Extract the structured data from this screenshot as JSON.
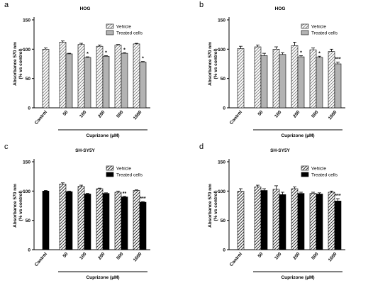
{
  "chart_data": [
    {
      "type": "bar",
      "panel_letter": "a",
      "title": "HOG",
      "ylabel_line1": "Absorbance 570 nm",
      "ylabel_line2": "(% vs control)",
      "xlabel": "Cuprizone (µM)",
      "ylim": [
        0,
        150
      ],
      "yticks": [
        "0",
        "50",
        "100",
        "150"
      ],
      "legend_position": "top-right",
      "control": {
        "label": "Control",
        "value": 100,
        "error": 2
      },
      "categories": [
        "50",
        "100",
        "200",
        "500",
        "1000"
      ],
      "series": [
        {
          "name": "Vehicle",
          "values": [
            112,
            108,
            105,
            107,
            109
          ],
          "errors": [
            2,
            2,
            2,
            1,
            1
          ],
          "significance": [
            "",
            "",
            "",
            "",
            ""
          ]
        },
        {
          "name": "Treated cells",
          "values": [
            92,
            86,
            88,
            93,
            78
          ],
          "errors": [
            1,
            1,
            1,
            1,
            1
          ],
          "significance": [
            "",
            "*",
            "*",
            "*",
            "*"
          ]
        }
      ],
      "style": {
        "vehicle_pattern": "hatch",
        "treated_fill": "#b3b3b3",
        "control_pattern": "hatch"
      }
    },
    {
      "type": "bar",
      "panel_letter": "b",
      "title": "HOG",
      "ylabel_line1": "Absorbance 570 nm",
      "ylabel_line2": "(% vs control)",
      "xlabel": "Cuprizone (µM)",
      "ylim": [
        0,
        150
      ],
      "yticks": [
        "0",
        "50",
        "100",
        "150"
      ],
      "legend_position": "top-right",
      "control": {
        "label": "Control",
        "value": 101,
        "error": 4
      },
      "categories": [
        "50",
        "100",
        "200",
        "500",
        "1000"
      ],
      "series": [
        {
          "name": "Vehicle",
          "values": [
            104,
            100,
            106,
            99,
            96
          ],
          "errors": [
            3,
            4,
            6,
            3,
            4
          ],
          "significance": [
            "",
            "",
            "",
            "",
            ""
          ]
        },
        {
          "name": "Treated cells",
          "values": [
            89,
            91,
            87,
            86,
            75
          ],
          "errors": [
            4,
            3,
            2,
            2,
            3
          ],
          "significance": [
            "",
            "",
            "*",
            "*",
            "***"
          ]
        }
      ],
      "style": {
        "vehicle_pattern": "hatch",
        "treated_fill": "#b3b3b3",
        "control_pattern": "hatch"
      }
    },
    {
      "type": "bar",
      "panel_letter": "c",
      "title": "SH-SY5Y",
      "ylabel_line1": "Absorbance 570 nm",
      "ylabel_line2": "(% vs control)",
      "xlabel": "Cuprizone (µM)",
      "ylim": [
        0,
        150
      ],
      "yticks": [
        "0",
        "50",
        "100",
        "150"
      ],
      "legend_position": "top-right",
      "control": {
        "label": "Control",
        "value": 100,
        "error": 1
      },
      "categories": [
        "50",
        "100",
        "200",
        "500",
        "1000"
      ],
      "series": [
        {
          "name": "Vehicle",
          "values": [
            112,
            108,
            104,
            98,
            101
          ],
          "errors": [
            2,
            2,
            1,
            2,
            1
          ],
          "significance": [
            "",
            "",
            "",
            "",
            ""
          ]
        },
        {
          "name": "Treated cells",
          "values": [
            99,
            95,
            96,
            90,
            81
          ],
          "errors": [
            1,
            1,
            1,
            1,
            1
          ],
          "significance": [
            "",
            "",
            "",
            "**",
            "***"
          ]
        }
      ],
      "style": {
        "vehicle_pattern": "hatch",
        "treated_fill": "#000000",
        "control_pattern": "solid"
      }
    },
    {
      "type": "bar",
      "panel_letter": "d",
      "title": "SH-SY5Y",
      "ylabel_line1": "Absorbance 570 nm",
      "ylabel_line2": "(% vs control)",
      "xlabel": "Cuprizone (µM)",
      "ylim": [
        0,
        150
      ],
      "yticks": [
        "0",
        "50",
        "100",
        "150"
      ],
      "legend_position": "top-right",
      "control": {
        "label": "Control",
        "value": 100,
        "error": 4
      },
      "categories": [
        "50",
        "100",
        "200",
        "500",
        "1000"
      ],
      "series": [
        {
          "name": "Vehicle",
          "values": [
            107,
            103,
            104,
            96,
            98
          ],
          "errors": [
            3,
            6,
            3,
            2,
            2
          ],
          "significance": [
            "",
            "",
            "",
            "",
            ""
          ]
        },
        {
          "name": "Treated cells",
          "values": [
            101,
            94,
            96,
            95,
            83
          ],
          "errors": [
            3,
            4,
            2,
            2,
            4
          ],
          "significance": [
            "",
            "",
            "",
            "",
            "***"
          ]
        }
      ],
      "style": {
        "vehicle_pattern": "hatch",
        "treated_fill": "#000000",
        "control_pattern": "hatch"
      }
    }
  ]
}
